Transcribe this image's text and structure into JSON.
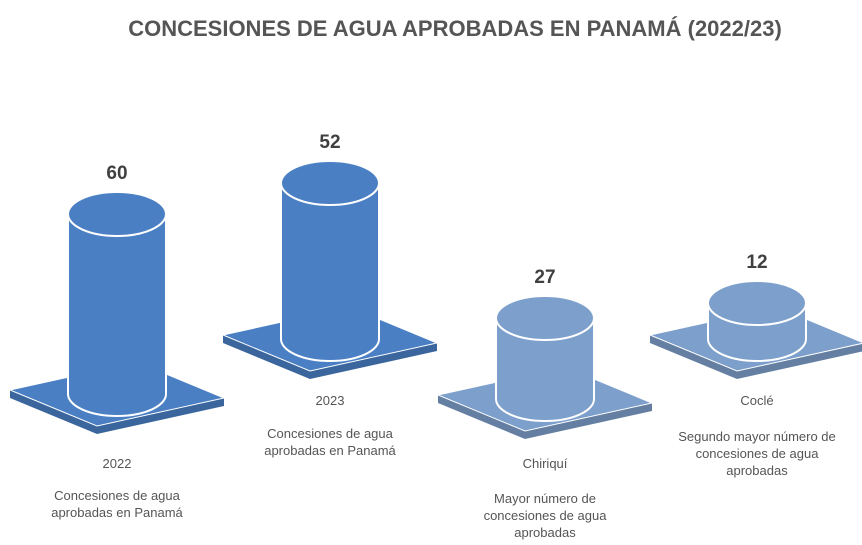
{
  "chart_data": {
    "type": "cylinder",
    "title": "CONCESIONES DE AGUA APROBADAS EN PANAMÁ (2022/23)",
    "categories": [
      "2022",
      "2023",
      "Chiriquí",
      "Coclé"
    ],
    "values": [
      60,
      52,
      27,
      12
    ],
    "descriptions": [
      "Concesiones de agua aprobadas en Panamá",
      "Concesiones de agua aprobadas en Panamá",
      "Mayor número de concesiones de agua aprobadas",
      "Segundo mayor número de concesiones de agua aprobadas"
    ],
    "colors": [
      "#4a7fc4",
      "#4a7fc4",
      "#7d9fcb",
      "#7d9fcb"
    ]
  }
}
